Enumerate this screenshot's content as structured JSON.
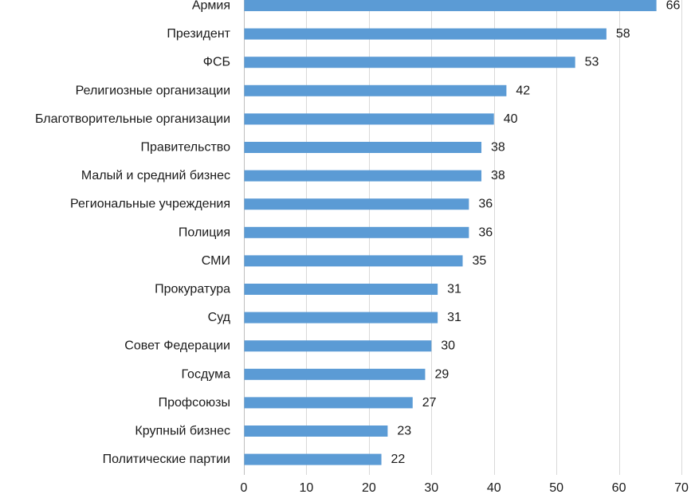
{
  "chart_data": {
    "type": "bar",
    "orientation": "horizontal",
    "categories": [
      "Армия",
      "Президент",
      "ФСБ",
      "Религиозные организации",
      "Благотворительные организации",
      "Правительство",
      "Малый и средний бизнес",
      "Региональные учреждения",
      "Полиция",
      "СМИ",
      "Прокуратура",
      "Суд",
      "Совет Федерации",
      "Госдума",
      "Профсоюзы",
      "Крупный бизнес",
      "Политические партии"
    ],
    "values": [
      66,
      58,
      53,
      42,
      40,
      38,
      38,
      36,
      36,
      35,
      31,
      31,
      30,
      29,
      27,
      23,
      22
    ],
    "xlim": [
      0,
      70
    ],
    "xticks": [
      0,
      10,
      20,
      30,
      40,
      50,
      60,
      70
    ],
    "grid": true,
    "bar_color": "#5b9bd5",
    "title": "",
    "xlabel": "",
    "ylabel": ""
  }
}
